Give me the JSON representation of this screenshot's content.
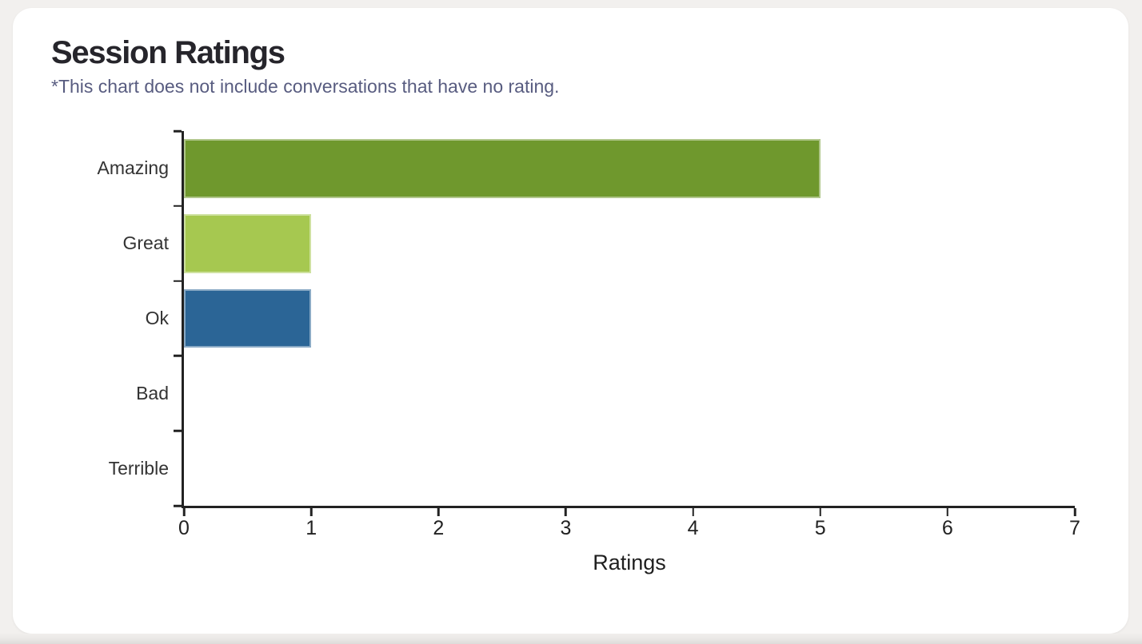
{
  "page": {
    "background_color": "#f2f0ee"
  },
  "card": {
    "title": "Session Ratings",
    "subtitle": "*This chart does not include conversations that have no rating.",
    "title_color": "#26252b",
    "subtitle_color": "#585c80"
  },
  "chart_data": {
    "type": "bar",
    "orientation": "horizontal",
    "title": "Session Ratings",
    "note": "*This chart does not include conversations that have no rating.",
    "categories": [
      "Amazing",
      "Great",
      "Ok",
      "Bad",
      "Terrible"
    ],
    "values": [
      5,
      1,
      1,
      0,
      0
    ],
    "bar_colors": [
      "#6f982d",
      "#a6c850",
      "#2b6596",
      null,
      null
    ],
    "xlabel": "Ratings",
    "ylabel": "",
    "xlim": [
      0,
      7
    ],
    "xticks": [
      0,
      1,
      2,
      3,
      4,
      5,
      6,
      7
    ],
    "grid": false,
    "legend": false,
    "axis_color": "#222222",
    "tick_label_color": "#222222",
    "category_label_color": "#333333"
  }
}
